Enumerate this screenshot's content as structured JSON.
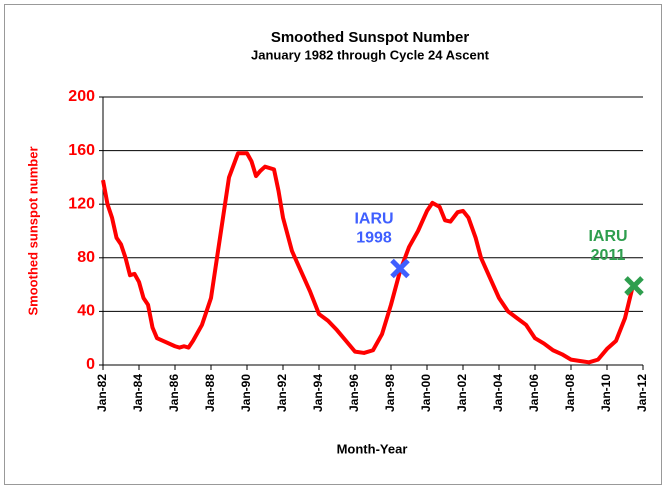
{
  "chart_data": {
    "type": "line",
    "title": "Smoothed Sunspot Number",
    "subtitle": "January 1982 through Cycle 24 Ascent",
    "x_label": "Month-Year",
    "y_label": "Smoothed sunspot number",
    "xlim": [
      1982,
      2012
    ],
    "xticks": [
      {
        "value": 1982,
        "label": "Jan-82"
      },
      {
        "value": 1984,
        "label": "Jan-84"
      },
      {
        "value": 1986,
        "label": "Jan-86"
      },
      {
        "value": 1988,
        "label": "Jan-88"
      },
      {
        "value": 1990,
        "label": "Jan-90"
      },
      {
        "value": 1992,
        "label": "Jan-92"
      },
      {
        "value": 1994,
        "label": "Jan-94"
      },
      {
        "value": 1996,
        "label": "Jan-96"
      },
      {
        "value": 1998,
        "label": "Jan-98"
      },
      {
        "value": 2000,
        "label": "Jan-00"
      },
      {
        "value": 2002,
        "label": "Jan-02"
      },
      {
        "value": 2004,
        "label": "Jan-04"
      },
      {
        "value": 2006,
        "label": "Jan-06"
      },
      {
        "value": 2008,
        "label": "Jan-08"
      },
      {
        "value": 2010,
        "label": "Jan-10"
      },
      {
        "value": 2012,
        "label": "Jan-12"
      }
    ],
    "ylim": [
      0,
      200
    ],
    "yticks": [
      0,
      40,
      80,
      120,
      160,
      200
    ],
    "grid": true,
    "series": [
      {
        "color": "#ff0000",
        "x": [
          1982,
          1982.25,
          1982.5,
          1982.75,
          1983,
          1983.25,
          1983.5,
          1983.75,
          1984,
          1984.25,
          1984.5,
          1984.75,
          1985,
          1985.5,
          1986,
          1986.25,
          1986.5,
          1986.75,
          1987,
          1987.5,
          1988,
          1988.5,
          1989,
          1989.5,
          1990,
          1990.25,
          1990.5,
          1990.75,
          1991,
          1991.5,
          1991.75,
          1992,
          1992.5,
          1993,
          1993.5,
          1994,
          1994.5,
          1995,
          1995.5,
          1996,
          1996.5,
          1997,
          1997.5,
          1998,
          1998.5,
          1999,
          1999.5,
          2000,
          2000.3,
          2000.7,
          2001,
          2001.3,
          2001.7,
          2002,
          2002.3,
          2002.7,
          2003,
          2003.5,
          2004,
          2004.5,
          2005,
          2005.5,
          2006,
          2006.5,
          2007,
          2007.5,
          2008,
          2008.5,
          2009,
          2009.5,
          2010,
          2010.5,
          2011,
          2011.4
        ],
        "values": [
          138,
          120,
          110,
          95,
          90,
          80,
          67,
          68,
          62,
          50,
          45,
          28,
          20,
          17,
          14,
          13,
          14,
          13,
          18,
          30,
          50,
          95,
          140,
          158,
          158,
          152,
          141,
          145,
          148,
          146,
          130,
          110,
          85,
          70,
          55,
          38,
          33,
          26,
          18,
          10,
          9,
          11,
          23,
          45,
          70,
          88,
          100,
          115,
          121,
          118,
          108,
          107,
          114,
          115,
          110,
          95,
          80,
          65,
          50,
          40,
          35,
          30,
          20,
          16,
          11,
          8,
          4,
          3,
          2,
          4,
          12,
          18,
          35,
          57
        ]
      }
    ],
    "markers": [
      {
        "lines": [
          "IARU",
          "1998"
        ],
        "x": 1998.5,
        "y": 72,
        "color": "#3f5fff"
      },
      {
        "lines": [
          "IARU",
          "2011"
        ],
        "x": 2011.5,
        "y": 59,
        "color": "#2e9e4e"
      }
    ]
  }
}
